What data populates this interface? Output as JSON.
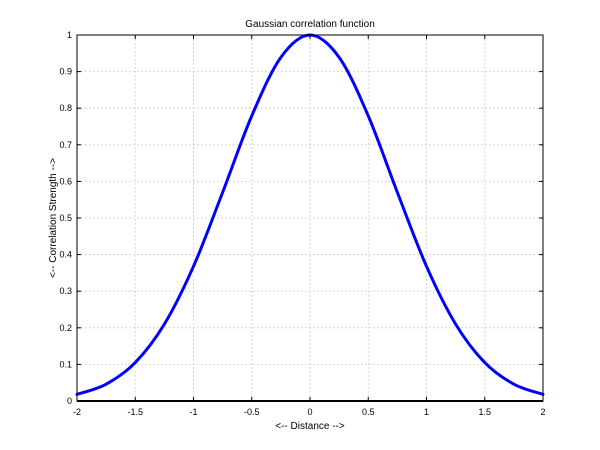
{
  "chart_data": {
    "type": "line",
    "title": "Gaussian correlation function",
    "xlabel": "<-- Distance -->",
    "ylabel": "<-- Correlation Strength -->",
    "xlim": [
      -2,
      2
    ],
    "ylim": [
      0,
      1
    ],
    "grid": true,
    "legend": "none",
    "x_ticks": [
      -2,
      -1.5,
      -1,
      -0.5,
      0,
      0.5,
      1,
      1.5,
      2
    ],
    "x_tick_labels": [
      "-2",
      "-1.5",
      "-1",
      "-0.5",
      "0",
      "0.5",
      "1",
      "1.5",
      "2"
    ],
    "y_ticks": [
      0,
      0.1,
      0.2,
      0.3,
      0.4,
      0.5,
      0.6,
      0.7,
      0.8,
      0.9,
      1
    ],
    "y_tick_labels": [
      "0",
      "0.1",
      "0.2",
      "0.3",
      "0.4",
      "0.5",
      "0.6",
      "0.7",
      "0.8",
      "0.9",
      "1"
    ],
    "series": [
      {
        "color": "#0000ff",
        "x": [
          -2,
          -1.75,
          -1.5,
          -1.25,
          -1,
          -0.75,
          -0.5,
          -0.25,
          0,
          0.25,
          0.5,
          0.75,
          1,
          1.25,
          1.5,
          1.75,
          2
        ],
        "y": [
          0.018,
          0.046,
          0.105,
          0.21,
          0.368,
          0.57,
          0.779,
          0.939,
          1,
          0.939,
          0.779,
          0.57,
          0.368,
          0.21,
          0.105,
          0.046,
          0.018
        ]
      }
    ],
    "baseline": {
      "y": 0,
      "color": "#000000"
    }
  }
}
